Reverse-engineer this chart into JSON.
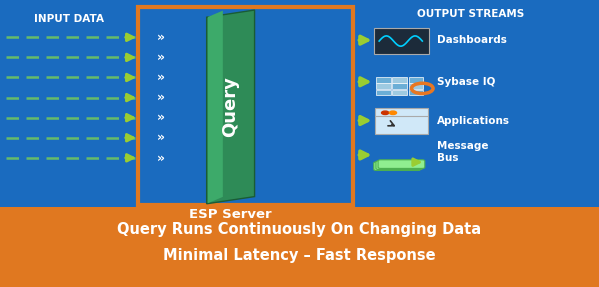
{
  "bg_color": "#1A6BBF",
  "orange_color": "#E07820",
  "white": "#FFFFFF",
  "green_dash": "#66BB6A",
  "green_arrow": "#9ACD32",
  "query_green": "#2E8B57",
  "query_green_light": "#3DAA6A",
  "esp_border": "#E07820",
  "input_label": "INPUT DATA",
  "output_label": "OUTPUT STREAMS",
  "esp_label": "ESP Server",
  "query_label": "Query",
  "bottom_line1": "Query Runs Continuously On Changing Data",
  "bottom_line2": "Minimal Latency – Fast Response",
  "fig_width": 5.99,
  "fig_height": 2.87,
  "dpi": 100
}
